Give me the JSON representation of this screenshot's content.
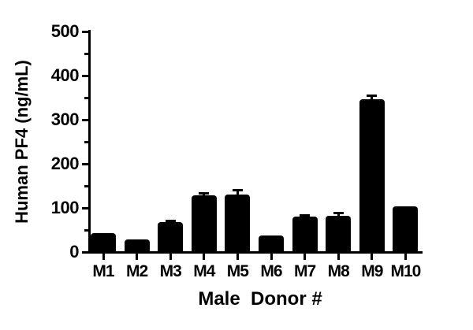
{
  "chart_data": {
    "type": "bar",
    "title": "",
    "xlabel": "Male  Donor #",
    "ylabel": "Human PF4 (ng/mL)",
    "categories": [
      "M1",
      "M2",
      "M3",
      "M4",
      "M5",
      "M6",
      "M7",
      "M8",
      "M9",
      "M10"
    ],
    "values": [
      43,
      29,
      67,
      128,
      131,
      37,
      80,
      83,
      347,
      103
    ],
    "errors_upper": [
      0,
      0,
      7,
      7,
      11,
      0,
      6,
      8,
      11,
      0
    ],
    "error_type": "upper-only caps",
    "ylim": [
      0,
      500
    ],
    "yticks": [
      0,
      100,
      200,
      300,
      400,
      500
    ],
    "ytick_labels": [
      "0",
      "100",
      "200",
      "300",
      "400",
      "500"
    ],
    "yminor_ticks": [
      50,
      150,
      250,
      350,
      450
    ],
    "bar_color": "#000000",
    "axis_color": "#000000",
    "background_color": "#ffffff",
    "grid": "off",
    "legend": "none"
  }
}
